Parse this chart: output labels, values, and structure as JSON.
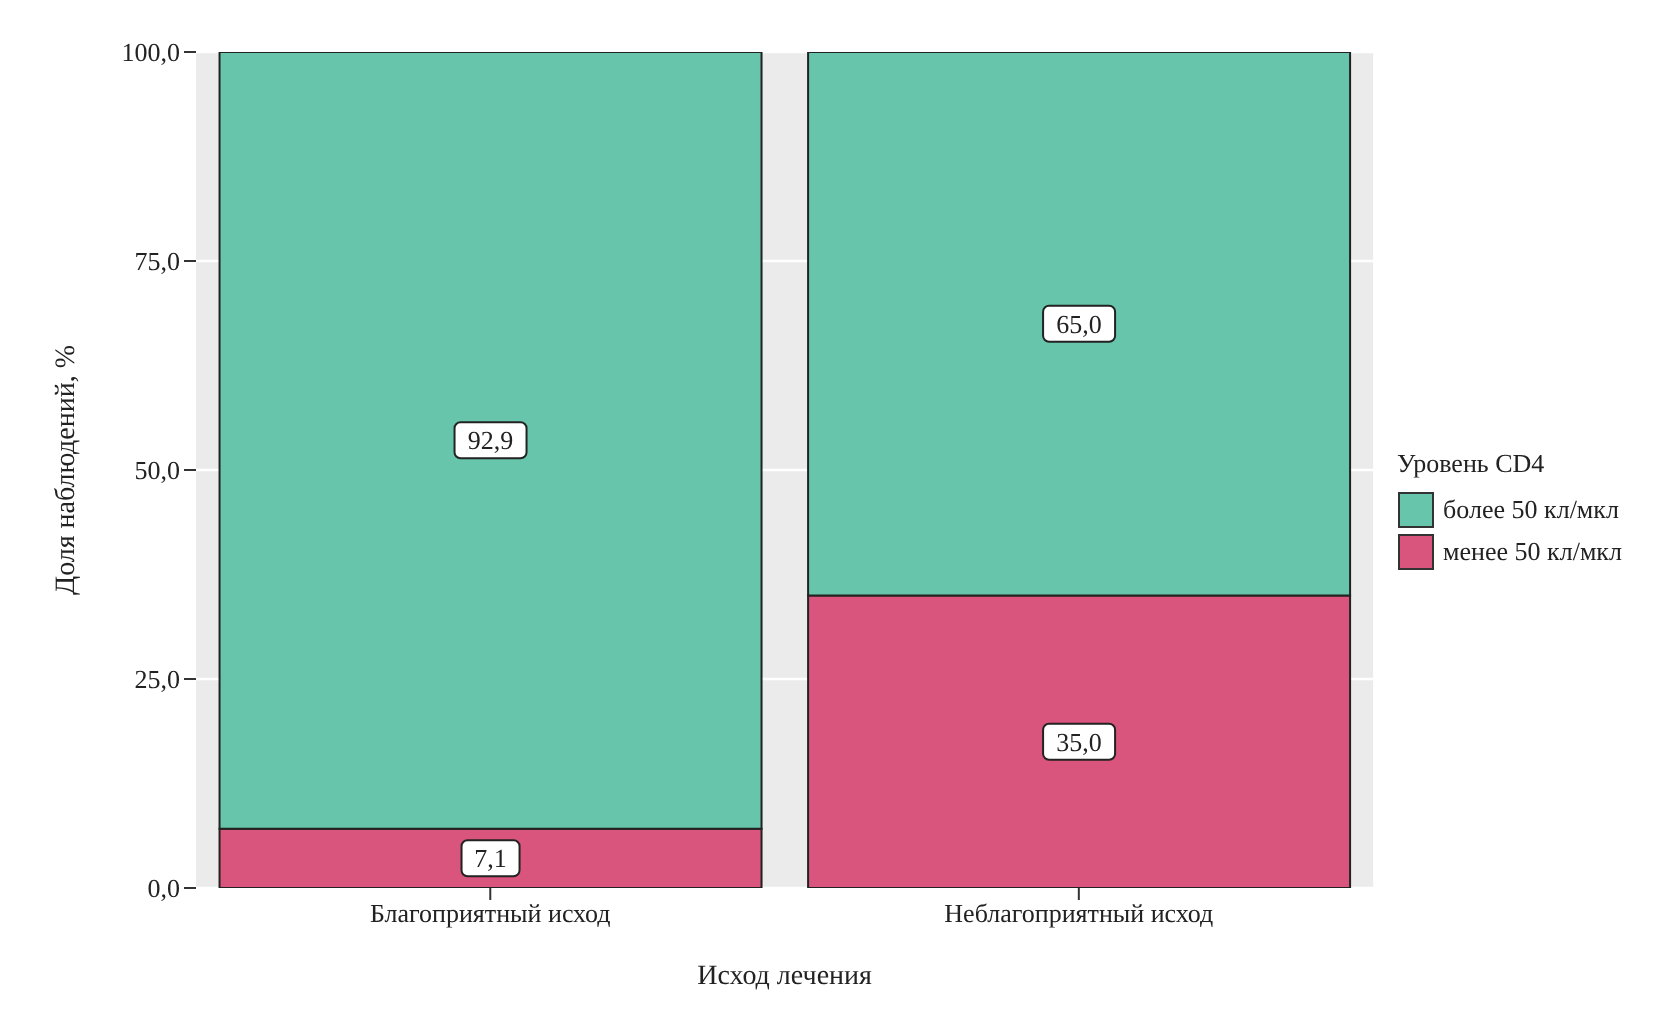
{
  "chart_data": {
    "type": "bar",
    "stacked": true,
    "xlabel": "Исход лечения",
    "ylabel": "Доля наблюдений, %",
    "legend_title": "Уровень CD4",
    "categories": [
      "Благоприятный исход",
      "Неблагоприятный исход"
    ],
    "series": [
      {
        "name": "менее 50 кл/мкл",
        "color": "#d9557d",
        "values": [
          7.1,
          35.0
        ],
        "value_labels": [
          "7,1",
          "35,0"
        ]
      },
      {
        "name": "более 50 кл/мкл",
        "color": "#66c5aa",
        "values": [
          92.9,
          65.0
        ],
        "value_labels": [
          "92,9",
          "65,0"
        ]
      }
    ],
    "ylim": [
      0,
      100
    ],
    "yticks": [
      {
        "value": 0,
        "label": "0,0"
      },
      {
        "value": 25,
        "label": "25,0"
      },
      {
        "value": 50,
        "label": "50,0"
      },
      {
        "value": 75,
        "label": "75,0"
      },
      {
        "value": 100,
        "label": "100,0"
      }
    ],
    "grid": "y",
    "legend": "right"
  }
}
